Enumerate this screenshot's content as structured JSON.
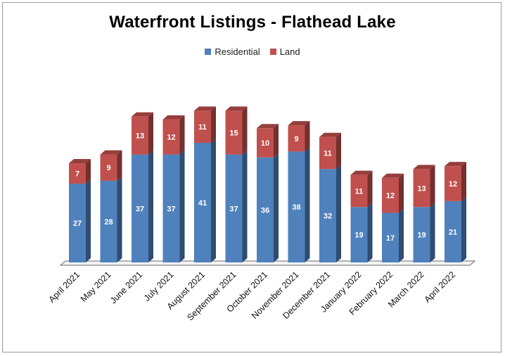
{
  "chart_data": {
    "type": "bar",
    "stacked": true,
    "title": "Waterfront Listings - Flathead Lake",
    "xlabel": "",
    "ylabel": "",
    "ylim": [
      0,
      60
    ],
    "grid": false,
    "legend_position": "top",
    "categories": [
      "April 2021",
      "May 2021",
      "June 2021",
      "July 2021",
      "August 2021",
      "September 2021",
      "October 2021",
      "November 2021",
      "December 2021",
      "January 2022",
      "February 2022",
      "March 2022",
      "April 2022"
    ],
    "series": [
      {
        "name": "Residential",
        "color": "#4f81bd",
        "values": [
          27,
          28,
          37,
          37,
          41,
          37,
          36,
          38,
          32,
          19,
          17,
          19,
          21
        ]
      },
      {
        "name": "Land",
        "color": "#c0504d",
        "values": [
          7,
          9,
          13,
          12,
          11,
          15,
          10,
          9,
          11,
          11,
          12,
          13,
          12
        ]
      }
    ]
  }
}
